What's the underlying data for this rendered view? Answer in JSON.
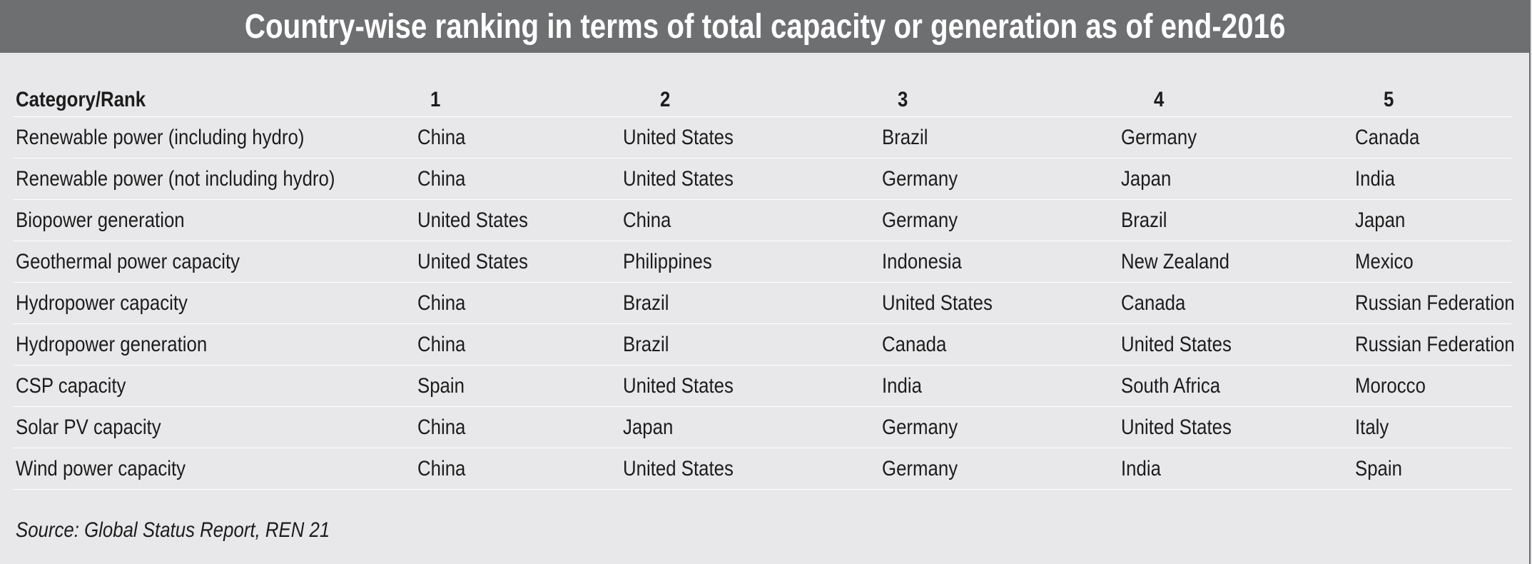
{
  "title": "Country-wise ranking in terms of total capacity or generation as of end-2016",
  "table": {
    "header": {
      "category": "Category/Rank",
      "ranks": [
        "1",
        "2",
        "3",
        "4",
        "5"
      ]
    },
    "rows": [
      {
        "category": "Renewable power (including hydro)",
        "ranks": [
          "China",
          "United States",
          "Brazil",
          "Germany",
          "Canada"
        ]
      },
      {
        "category": "Renewable power (not including hydro)",
        "ranks": [
          "China",
          "United States",
          "Germany",
          "Japan",
          "India"
        ]
      },
      {
        "category": "Biopower generation",
        "ranks": [
          "United States",
          "China",
          "Germany",
          "Brazil",
          "Japan"
        ]
      },
      {
        "category": "Geothermal power capacity",
        "ranks": [
          "United States",
          "Philippines",
          "Indonesia",
          "New Zealand",
          "Mexico"
        ]
      },
      {
        "category": "Hydropower capacity",
        "ranks": [
          "China",
          "Brazil",
          "United States",
          "Canada",
          "Russian Federation"
        ]
      },
      {
        "category": "Hydropower generation",
        "ranks": [
          "China",
          "Brazil",
          "Canada",
          "United States",
          "Russian Federation"
        ]
      },
      {
        "category": "CSP capacity",
        "ranks": [
          "Spain",
          "United States",
          "India",
          "South Africa",
          "Morocco"
        ]
      },
      {
        "category": "Solar PV capacity",
        "ranks": [
          "China",
          "Japan",
          "Germany",
          "United States",
          "Italy"
        ]
      },
      {
        "category": "Wind power capacity",
        "ranks": [
          "China",
          "United States",
          "Germany",
          "India",
          "Spain"
        ]
      }
    ]
  },
  "source": "Source: Global Status Report, REN 21",
  "colors": {
    "title_bar": "#6e6f71",
    "background": "#e8e8ea",
    "title_text": "#ffffff",
    "row_divider": "#ffffff"
  }
}
